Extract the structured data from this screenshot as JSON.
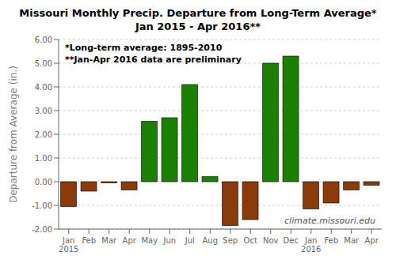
{
  "chart_data": {
    "type": "bar",
    "title": "Missouri Monthly Precip. Departure from Long-Term Average*",
    "subtitle": "Jan 2015 - Apr 2016**",
    "y_label": "Departure from Average (in.)",
    "annotations": [
      "*Long-term average: 1895-2010",
      "**Jan-Apr 2016 data are preliminary",
      "climate.missouri.edu"
    ],
    "categories": [
      "Jan\n2015",
      "Feb",
      "Mar",
      "Apr",
      "May",
      "Jun",
      "Jul",
      "Aug",
      "Sep",
      "Oct",
      "Nov",
      "Dec",
      "Jan\n2016",
      "Feb",
      "Mar",
      "Apr"
    ],
    "values": [
      -1.05,
      -0.4,
      -0.05,
      -0.35,
      2.55,
      2.7,
      4.1,
      0.22,
      -1.85,
      -1.6,
      5.0,
      5.3,
      -1.15,
      -0.9,
      -0.35,
      -0.15
    ],
    "colors": [
      "#8B3A0A",
      "#8B3A0A",
      "#8B3A0A",
      "#8B3A0A",
      "#1A8000",
      "#1A8000",
      "#1A8000",
      "#1A8000",
      "#8B3A0A",
      "#8B3A0A",
      "#1A8000",
      "#1A8000",
      "#8B3A0A",
      "#8B3A0A",
      "#8B3A0A",
      "#8B3A0A"
    ],
    "ylim": [
      -2.0,
      6.0
    ],
    "yticks": [
      {
        "value": -2,
        "label": "-2.00"
      },
      {
        "value": -1,
        "label": "-1.00"
      },
      {
        "value": 0,
        "label": "0.00"
      },
      {
        "value": 1,
        "label": "1.00"
      },
      {
        "value": 2,
        "label": "2.00"
      },
      {
        "value": 3,
        "label": "3.00"
      },
      {
        "value": 4,
        "label": "4.00"
      },
      {
        "value": 5,
        "label": "5.00"
      },
      {
        "value": 6,
        "label": "6.00"
      }
    ],
    "grid": true
  }
}
